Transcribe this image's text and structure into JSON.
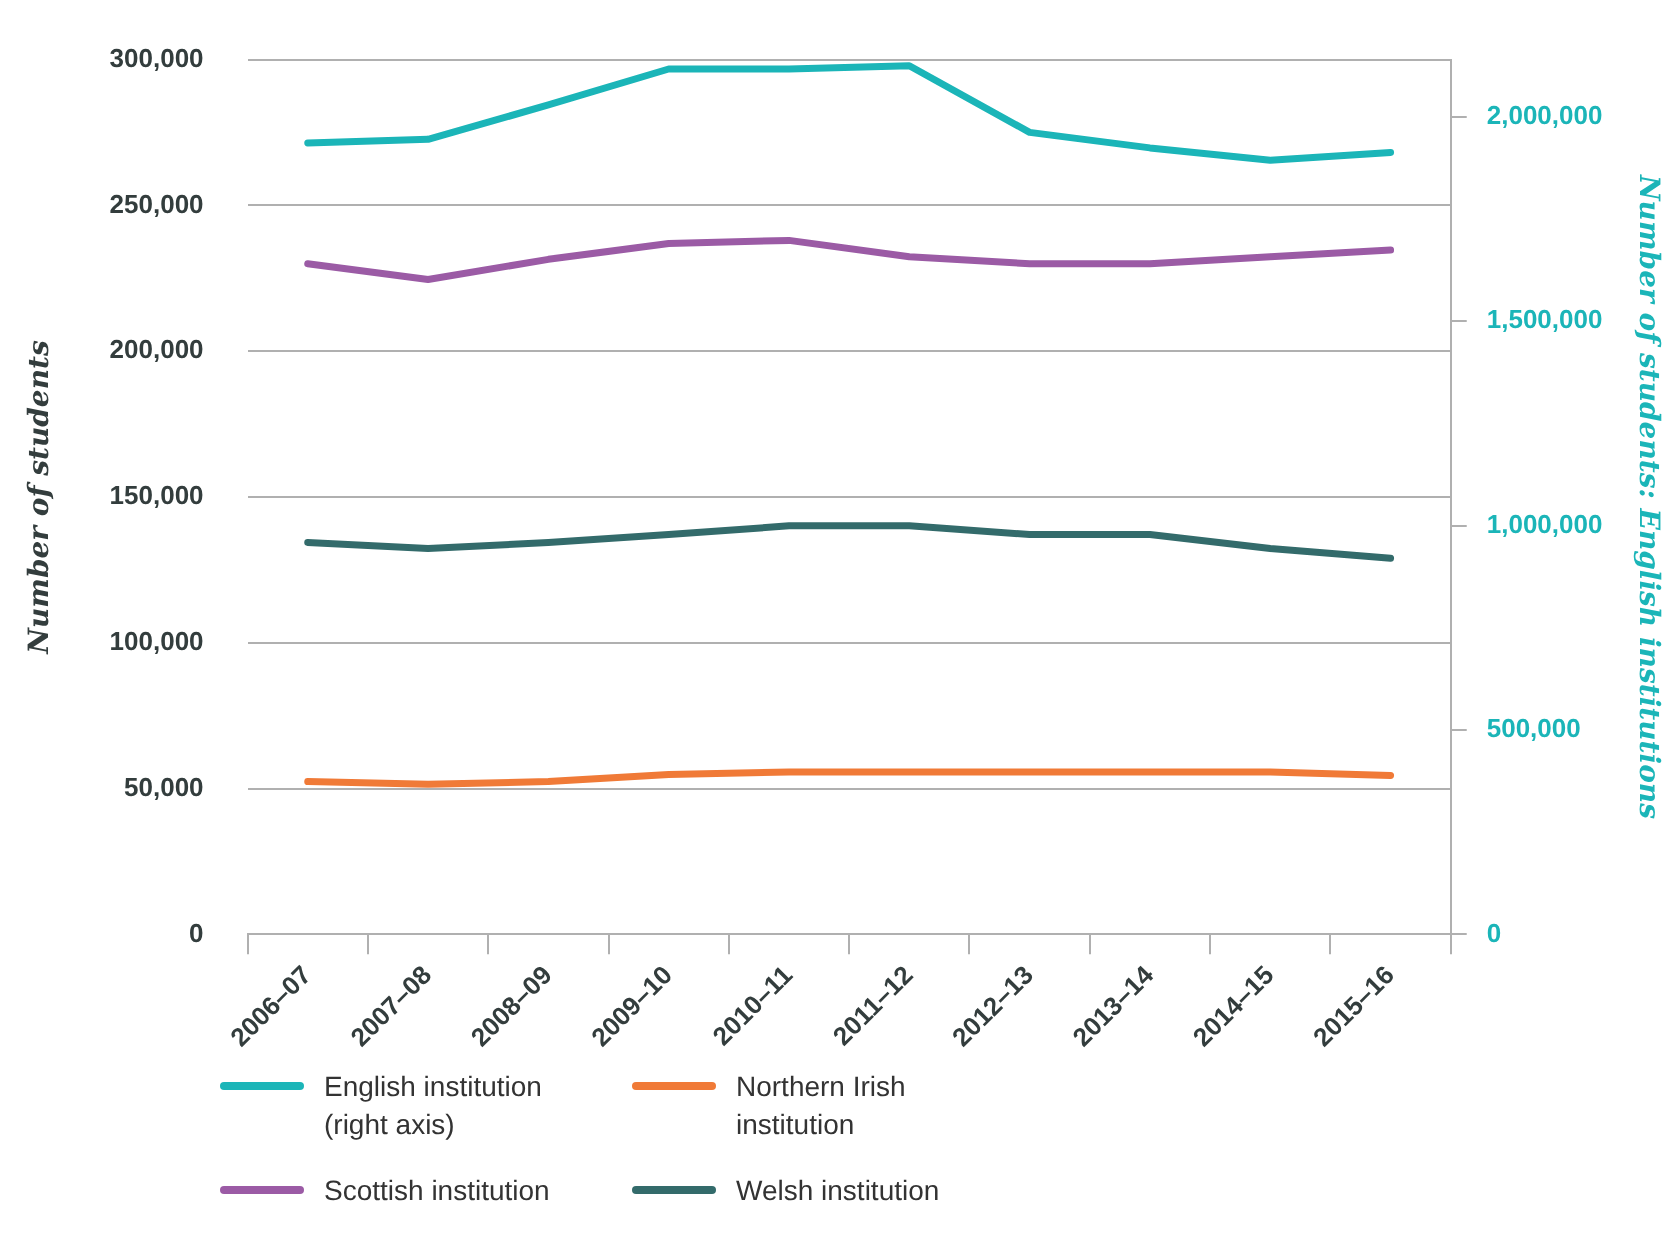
{
  "chart_data": {
    "type": "line",
    "ylabel": "Number of students",
    "y2label": "Number of students: English institutions",
    "categories": [
      "2006–07",
      "2007–08",
      "2008–09",
      "2009–10",
      "2010–11",
      "2011–12",
      "2012–13",
      "2013–14",
      "2014–15",
      "2015–16"
    ],
    "series": [
      {
        "name": "English institution (right axis)",
        "color": "#1bb5b8",
        "axis": "y2",
        "values": [
          1936000,
          1945000,
          2029000,
          2117000,
          2117000,
          2125000,
          1962000,
          1924000,
          1894000,
          1913000
        ]
      },
      {
        "name": "Northern Irish institution",
        "color": "#f07a37",
        "values": [
          52400,
          51500,
          52400,
          54800,
          55700,
          55700,
          55700,
          55700,
          55700,
          54500
        ]
      },
      {
        "name": "Scottish institution",
        "color": "#9b5ba5",
        "values": [
          230000,
          224600,
          231500,
          236900,
          238000,
          232400,
          230000,
          230000,
          232400,
          234700
        ]
      },
      {
        "name": "Welsh institution",
        "color": "#336b6b",
        "values": [
          134400,
          132300,
          134400,
          137100,
          140100,
          140100,
          137100,
          137100,
          132300,
          129000
        ]
      }
    ],
    "ylim": [
      0,
      300000
    ],
    "yticks": [
      0,
      {
        "value": 50000,
        "label": "50,000"
      },
      {
        "value": 100000,
        "label": "100,000"
      },
      {
        "value": 150000,
        "label": "150,000"
      },
      {
        "value": 200000,
        "label": "200,000"
      },
      {
        "value": 250000,
        "label": "250,000"
      },
      {
        "value": 300000,
        "label": "300,000"
      }
    ],
    "y2lim": [
      0,
      2140000
    ],
    "y2ticks": [
      0,
      {
        "value": 500000,
        "label": "500,000"
      },
      {
        "value": 1000000,
        "label": "1,000,000"
      },
      {
        "value": 1500000,
        "label": "1,500,000"
      },
      {
        "value": 2000000,
        "label": "2,000,000"
      }
    ],
    "grid": "y",
    "legend": "bottom",
    "marker": "none",
    "line_style": "solid"
  }
}
